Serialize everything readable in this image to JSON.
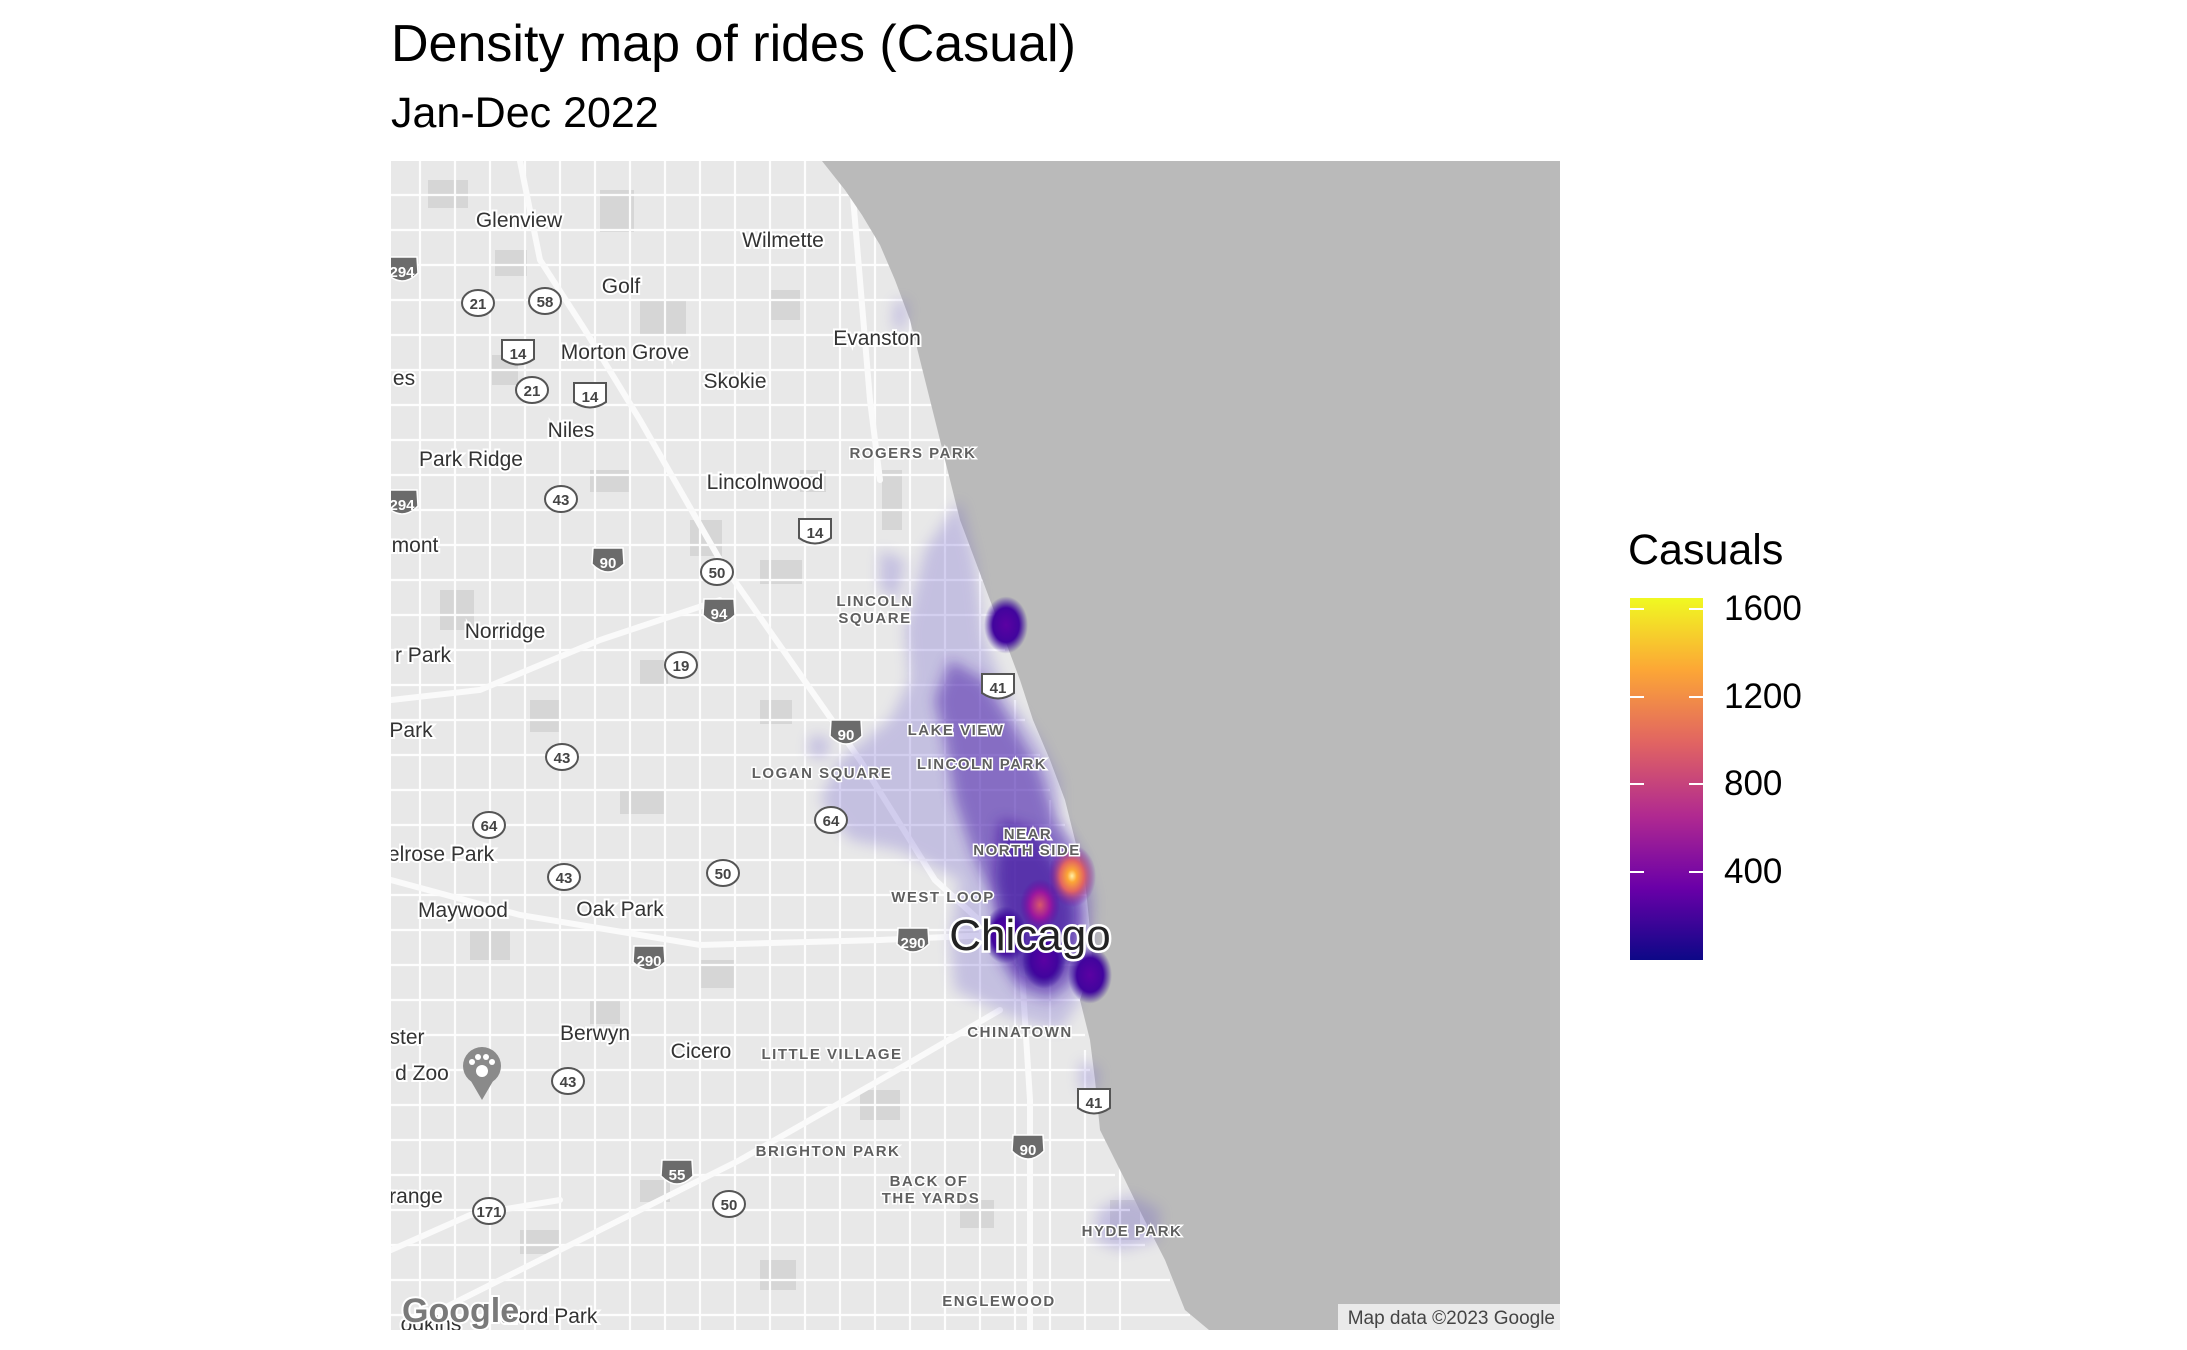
{
  "title": "Density map of rides (Casual)",
  "subtitle": "Jan-Dec 2022",
  "map": {
    "attribution": "Map data ©2023 Google",
    "logo": "Google",
    "water_color": "#bababa",
    "land_color": "#e8e8e8",
    "places_regular": [
      {
        "name": "Glenview",
        "pos": [
          519,
          220
        ]
      },
      {
        "name": "Wilmette",
        "pos": [
          783,
          240
        ]
      },
      {
        "name": "Golf",
        "pos": [
          621,
          286
        ]
      },
      {
        "name": "Evanston",
        "pos": [
          877,
          338
        ]
      },
      {
        "name": "Morton Grove",
        "pos": [
          625,
          352
        ]
      },
      {
        "name": "Skokie",
        "pos": [
          735,
          381
        ]
      },
      {
        "name": "es",
        "pos": [
          404,
          378
        ]
      },
      {
        "name": "Niles",
        "pos": [
          571,
          430
        ]
      },
      {
        "name": "Park Ridge",
        "pos": [
          471,
          459
        ]
      },
      {
        "name": "Lincolnwood",
        "pos": [
          765,
          482
        ]
      },
      {
        "name": "mont",
        "pos": [
          415,
          545
        ]
      },
      {
        "name": "Norridge",
        "pos": [
          505,
          631
        ]
      },
      {
        "name": "r Park",
        "pos": [
          423,
          655
        ]
      },
      {
        "name": "Park",
        "pos": [
          411,
          730
        ]
      },
      {
        "name": "elrose Park",
        "pos": [
          441,
          854
        ]
      },
      {
        "name": "Maywood",
        "pos": [
          463,
          910
        ]
      },
      {
        "name": "Oak Park",
        "pos": [
          620,
          909
        ]
      },
      {
        "name": "Berwyn",
        "pos": [
          595,
          1033
        ]
      },
      {
        "name": "Cicero",
        "pos": [
          701,
          1051
        ]
      },
      {
        "name": "ster",
        "pos": [
          407,
          1037
        ]
      },
      {
        "name": "d Zoo",
        "pos": [
          422,
          1073
        ]
      },
      {
        "name": "range",
        "pos": [
          416,
          1196
        ]
      },
      {
        "name": "odkins",
        "pos": [
          431,
          1324
        ]
      },
      {
        "name": "dford Park",
        "pos": [
          549,
          1316
        ]
      }
    ],
    "places_neighborhood": [
      {
        "name": "ROGERS PARK",
        "pos": [
          913,
          453
        ]
      },
      {
        "name": "LINCOLN",
        "pos": [
          875,
          601
        ]
      },
      {
        "name": "SQUARE",
        "pos": [
          875,
          618
        ]
      },
      {
        "name": "LAKE VIEW",
        "pos": [
          956,
          730
        ]
      },
      {
        "name": "LOGAN SQUARE",
        "pos": [
          822,
          773
        ]
      },
      {
        "name": "LINCOLN PARK",
        "pos": [
          982,
          764
        ]
      },
      {
        "name": "NEAR",
        "pos": [
          1028,
          834
        ]
      },
      {
        "name": "NORTH SIDE",
        "pos": [
          1027,
          850
        ]
      },
      {
        "name": "WEST LOOP",
        "pos": [
          943,
          897
        ]
      },
      {
        "name": "CHINATOWN",
        "pos": [
          1020,
          1032
        ]
      },
      {
        "name": "LITTLE VILLAGE",
        "pos": [
          832,
          1054
        ]
      },
      {
        "name": "BRIGHTON PARK",
        "pos": [
          828,
          1151
        ]
      },
      {
        "name": "BACK OF",
        "pos": [
          929,
          1181
        ]
      },
      {
        "name": "THE YARDS",
        "pos": [
          931,
          1198
        ]
      },
      {
        "name": "HYDE PARK",
        "pos": [
          1132,
          1231
        ]
      },
      {
        "name": "ENGLEWOOD",
        "pos": [
          999,
          1301
        ]
      }
    ],
    "city_label": "Chicago",
    "highway_shields": [
      {
        "num": "294",
        "type": "interstate",
        "pos": [
          402,
          271
        ]
      },
      {
        "num": "21",
        "type": "state",
        "pos": [
          478,
          303
        ]
      },
      {
        "num": "58",
        "type": "state",
        "pos": [
          545,
          301
        ]
      },
      {
        "num": "14",
        "type": "us",
        "pos": [
          518,
          353
        ]
      },
      {
        "num": "21",
        "type": "state",
        "pos": [
          532,
          390
        ]
      },
      {
        "num": "14",
        "type": "us",
        "pos": [
          590,
          396
        ]
      },
      {
        "num": "294",
        "type": "interstate",
        "pos": [
          402,
          504
        ]
      },
      {
        "num": "43",
        "type": "state",
        "pos": [
          561,
          499
        ]
      },
      {
        "num": "14",
        "type": "us",
        "pos": [
          815,
          532
        ]
      },
      {
        "num": "90",
        "type": "interstate",
        "pos": [
          608,
          562
        ]
      },
      {
        "num": "50",
        "type": "state",
        "pos": [
          717,
          572
        ]
      },
      {
        "num": "94",
        "type": "interstate",
        "pos": [
          719,
          613
        ]
      },
      {
        "num": "19",
        "type": "state",
        "pos": [
          681,
          665
        ]
      },
      {
        "num": "41",
        "type": "us",
        "pos": [
          998,
          687
        ]
      },
      {
        "num": "90",
        "type": "interstate",
        "pos": [
          846,
          734
        ]
      },
      {
        "num": "43",
        "type": "state",
        "pos": [
          562,
          757
        ]
      },
      {
        "num": "64",
        "type": "state",
        "pos": [
          831,
          820
        ]
      },
      {
        "num": "64",
        "type": "state",
        "pos": [
          489,
          825
        ]
      },
      {
        "num": "50",
        "type": "state",
        "pos": [
          723,
          873
        ]
      },
      {
        "num": "43",
        "type": "state",
        "pos": [
          564,
          877
        ]
      },
      {
        "num": "290",
        "type": "interstate",
        "pos": [
          913,
          942
        ]
      },
      {
        "num": "290",
        "type": "interstate",
        "pos": [
          649,
          960
        ]
      },
      {
        "num": "43",
        "type": "state",
        "pos": [
          568,
          1081
        ]
      },
      {
        "num": "41",
        "type": "us",
        "pos": [
          1094,
          1102
        ]
      },
      {
        "num": "90",
        "type": "interstate",
        "pos": [
          1028,
          1149
        ]
      },
      {
        "num": "55",
        "type": "interstate",
        "pos": [
          677,
          1174
        ]
      },
      {
        "num": "50",
        "type": "state",
        "pos": [
          729,
          1204
        ]
      },
      {
        "num": "171",
        "type": "state",
        "pos": [
          489,
          1211
        ]
      }
    ],
    "zoo_icon": "paw-icon",
    "density_blobs": [
      {
        "pos": [
          1072,
          876
        ],
        "level": 1650
      },
      {
        "pos": [
          1040,
          905
        ],
        "level": 900
      },
      {
        "pos": [
          1044,
          960
        ],
        "level": 520
      },
      {
        "pos": [
          1005,
          935
        ],
        "level": 460
      },
      {
        "pos": [
          1090,
          975
        ],
        "level": 420
      },
      {
        "pos": [
          1006,
          625
        ],
        "level": 330
      }
    ]
  },
  "legend": {
    "title": "Casuals",
    "labels": [
      "1600",
      "1200",
      "800",
      "400"
    ],
    "values": [
      1600,
      1200,
      800,
      400
    ],
    "min": 0,
    "max": 1650,
    "colors": [
      "#f0f921",
      "#fca636",
      "#e16462",
      "#b12a90",
      "#6a00a8",
      "#0d0887"
    ]
  }
}
